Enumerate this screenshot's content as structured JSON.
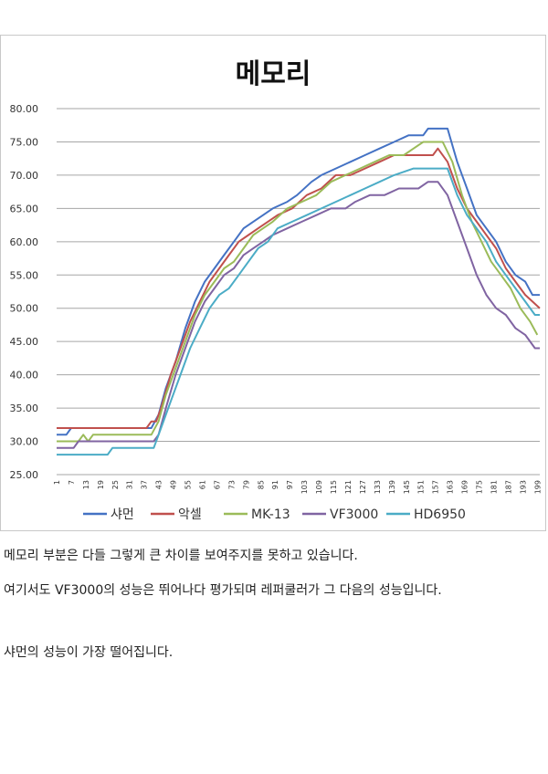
{
  "chart_data": {
    "type": "line",
    "title": "메모리",
    "xlabel": "",
    "ylabel": "",
    "ylim": [
      25,
      80
    ],
    "y_ticks": [
      "25.00",
      "30.00",
      "35.00",
      "40.00",
      "45.00",
      "50.00",
      "55.00",
      "60.00",
      "65.00",
      "70.00",
      "75.00",
      "80.00"
    ],
    "x_ticks": [
      "1",
      "7",
      "13",
      "19",
      "25",
      "31",
      "37",
      "43",
      "49",
      "55",
      "61",
      "67",
      "73",
      "79",
      "85",
      "91",
      "97",
      "103",
      "109",
      "115",
      "121",
      "127",
      "133",
      "139",
      "145",
      "151",
      "157",
      "163",
      "169",
      "175",
      "181",
      "187",
      "193",
      "199"
    ],
    "x_range": [
      1,
      200
    ],
    "grid": true,
    "legend_position": "bottom",
    "series": [
      {
        "name": "샤먼",
        "color": "#4472C4",
        "points": [
          [
            1,
            31
          ],
          [
            5,
            31
          ],
          [
            7,
            32
          ],
          [
            40,
            32
          ],
          [
            43,
            34
          ],
          [
            46,
            38
          ],
          [
            50,
            42
          ],
          [
            54,
            47
          ],
          [
            58,
            51
          ],
          [
            62,
            54
          ],
          [
            66,
            56
          ],
          [
            70,
            58
          ],
          [
            74,
            60
          ],
          [
            78,
            62
          ],
          [
            82,
            63
          ],
          [
            86,
            64
          ],
          [
            90,
            65
          ],
          [
            96,
            66
          ],
          [
            100,
            67
          ],
          [
            106,
            69
          ],
          [
            110,
            70
          ],
          [
            116,
            71
          ],
          [
            122,
            72
          ],
          [
            128,
            73
          ],
          [
            134,
            74
          ],
          [
            140,
            75
          ],
          [
            146,
            76
          ],
          [
            152,
            76
          ],
          [
            154,
            77
          ],
          [
            162,
            77
          ],
          [
            166,
            72
          ],
          [
            170,
            68
          ],
          [
            174,
            64
          ],
          [
            178,
            62
          ],
          [
            182,
            60
          ],
          [
            186,
            57
          ],
          [
            190,
            55
          ],
          [
            194,
            54
          ],
          [
            197,
            52
          ],
          [
            200,
            52
          ]
        ]
      },
      {
        "name": "악셀",
        "color": "#C0504D",
        "points": [
          [
            1,
            32
          ],
          [
            38,
            32
          ],
          [
            40,
            33
          ],
          [
            42,
            33
          ],
          [
            44,
            35
          ],
          [
            48,
            40
          ],
          [
            52,
            44
          ],
          [
            56,
            48
          ],
          [
            60,
            51
          ],
          [
            64,
            54
          ],
          [
            68,
            56
          ],
          [
            72,
            58
          ],
          [
            76,
            60
          ],
          [
            80,
            61
          ],
          [
            84,
            62
          ],
          [
            88,
            63
          ],
          [
            92,
            64
          ],
          [
            98,
            65
          ],
          [
            104,
            67
          ],
          [
            110,
            68
          ],
          [
            116,
            70
          ],
          [
            122,
            70
          ],
          [
            128,
            71
          ],
          [
            134,
            72
          ],
          [
            140,
            73
          ],
          [
            150,
            73
          ],
          [
            156,
            73
          ],
          [
            158,
            74
          ],
          [
            162,
            72
          ],
          [
            166,
            68
          ],
          [
            170,
            65
          ],
          [
            174,
            63
          ],
          [
            178,
            61
          ],
          [
            182,
            59
          ],
          [
            186,
            56
          ],
          [
            190,
            54
          ],
          [
            194,
            52
          ],
          [
            197,
            51
          ],
          [
            200,
            50
          ]
        ]
      },
      {
        "name": "MK-13",
        "color": "#9BBB59",
        "points": [
          [
            1,
            30
          ],
          [
            10,
            30
          ],
          [
            12,
            31
          ],
          [
            14,
            30
          ],
          [
            16,
            31
          ],
          [
            40,
            31
          ],
          [
            43,
            33
          ],
          [
            46,
            37
          ],
          [
            50,
            41
          ],
          [
            54,
            45
          ],
          [
            58,
            49
          ],
          [
            62,
            52
          ],
          [
            66,
            54
          ],
          [
            70,
            56
          ],
          [
            74,
            57
          ],
          [
            78,
            59
          ],
          [
            82,
            61
          ],
          [
            86,
            62
          ],
          [
            90,
            63
          ],
          [
            96,
            65
          ],
          [
            102,
            66
          ],
          [
            108,
            67
          ],
          [
            114,
            69
          ],
          [
            120,
            70
          ],
          [
            126,
            71
          ],
          [
            132,
            72
          ],
          [
            138,
            73
          ],
          [
            144,
            73
          ],
          [
            148,
            74
          ],
          [
            152,
            75
          ],
          [
            160,
            75
          ],
          [
            164,
            72
          ],
          [
            168,
            67
          ],
          [
            172,
            63
          ],
          [
            176,
            60
          ],
          [
            180,
            57
          ],
          [
            184,
            55
          ],
          [
            188,
            53
          ],
          [
            192,
            50
          ],
          [
            196,
            48
          ],
          [
            199,
            46
          ]
        ]
      },
      {
        "name": "VF3000",
        "color": "#8064A2",
        "points": [
          [
            1,
            29
          ],
          [
            8,
            29
          ],
          [
            10,
            30
          ],
          [
            41,
            30
          ],
          [
            43,
            31
          ],
          [
            46,
            35
          ],
          [
            50,
            40
          ],
          [
            54,
            44
          ],
          [
            58,
            48
          ],
          [
            62,
            51
          ],
          [
            66,
            53
          ],
          [
            70,
            55
          ],
          [
            74,
            56
          ],
          [
            78,
            58
          ],
          [
            82,
            59
          ],
          [
            86,
            60
          ],
          [
            90,
            61
          ],
          [
            96,
            62
          ],
          [
            102,
            63
          ],
          [
            108,
            64
          ],
          [
            114,
            65
          ],
          [
            120,
            65
          ],
          [
            124,
            66
          ],
          [
            130,
            67
          ],
          [
            136,
            67
          ],
          [
            142,
            68
          ],
          [
            150,
            68
          ],
          [
            154,
            69
          ],
          [
            158,
            69
          ],
          [
            162,
            67
          ],
          [
            166,
            63
          ],
          [
            170,
            59
          ],
          [
            174,
            55
          ],
          [
            178,
            52
          ],
          [
            182,
            50
          ],
          [
            186,
            49
          ],
          [
            190,
            47
          ],
          [
            194,
            46
          ],
          [
            198,
            44
          ],
          [
            200,
            44
          ]
        ]
      },
      {
        "name": "HD6950",
        "color": "#4BACC6",
        "points": [
          [
            1,
            28
          ],
          [
            22,
            28
          ],
          [
            24,
            29
          ],
          [
            38,
            29
          ],
          [
            41,
            29
          ],
          [
            44,
            32
          ],
          [
            48,
            36
          ],
          [
            52,
            40
          ],
          [
            56,
            44
          ],
          [
            60,
            47
          ],
          [
            64,
            50
          ],
          [
            68,
            52
          ],
          [
            72,
            53
          ],
          [
            76,
            55
          ],
          [
            80,
            57
          ],
          [
            84,
            59
          ],
          [
            88,
            60
          ],
          [
            92,
            62
          ],
          [
            98,
            63
          ],
          [
            104,
            64
          ],
          [
            110,
            65
          ],
          [
            116,
            66
          ],
          [
            122,
            67
          ],
          [
            128,
            68
          ],
          [
            134,
            69
          ],
          [
            140,
            70
          ],
          [
            148,
            71
          ],
          [
            162,
            71
          ],
          [
            166,
            67
          ],
          [
            170,
            64
          ],
          [
            174,
            62
          ],
          [
            178,
            60
          ],
          [
            182,
            57
          ],
          [
            186,
            55
          ],
          [
            190,
            53
          ],
          [
            194,
            51
          ],
          [
            198,
            49
          ],
          [
            200,
            49
          ]
        ]
      }
    ]
  },
  "text": {
    "p1": "메모리 부분은 다들 그렇게 큰 차이를 보여주지를 못하고 있습니다.",
    "p2": "여기서도 VF3000의 성능은 뛰어나다 평가되며 레퍼쿨러가 그 다음의 성능입니다.",
    "p3": "샤먼의 성능이 가장 떨어집니다."
  }
}
